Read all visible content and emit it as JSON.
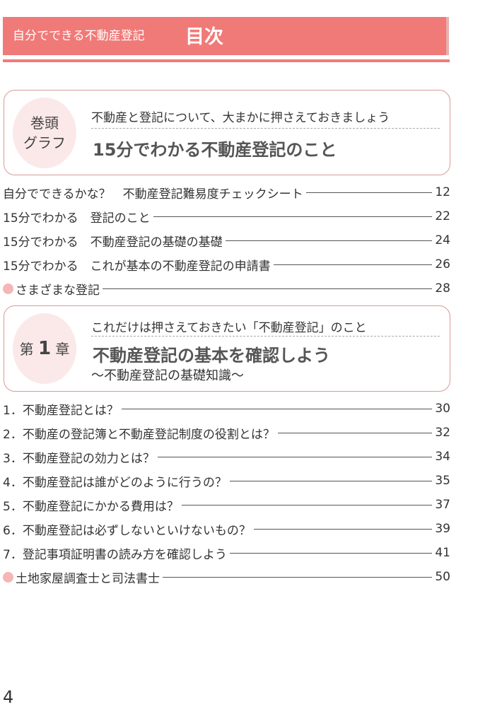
{
  "header": {
    "series": "自分でできる不動産登記",
    "title": "目次"
  },
  "sections": [
    {
      "badge": "巻頭グラフ",
      "badge_lines": [
        "巻頭",
        "グラフ"
      ],
      "subtitle": "不動産と登記について、大まかに押さえておきましょう",
      "title": "15分でわかる不動産登記のこと",
      "entries": [
        {
          "title": "自分でできるかな？　不動産登記難易度チェックシート",
          "page": "12",
          "marker": false
        },
        {
          "title": "15分でわかる　登記のこと",
          "page": "22",
          "marker": false
        },
        {
          "title": "15分でわかる　不動産登記の基礎の基礎",
          "page": "24",
          "marker": false
        },
        {
          "title": "15分でわかる　これが基本の不動産登記の申請書",
          "page": "26",
          "marker": false
        },
        {
          "title": "さまざまな登記",
          "page": "28",
          "marker": true
        }
      ]
    },
    {
      "badge": "第1章",
      "badge_parts": [
        "第",
        "1",
        "章"
      ],
      "subtitle": "これだけは押さえておきたい「不動産登記」のこと",
      "title": "不動産登記の基本を確認しよう",
      "tagline": "～不動産登記の基礎知識～",
      "entries": [
        {
          "title": "1．不動産登記とは？",
          "page": "30",
          "marker": false
        },
        {
          "title": "2．不動産の登記簿と不動産登記制度の役割とは？",
          "page": "32",
          "marker": false
        },
        {
          "title": "3．不動産登記の効力とは？",
          "page": "34",
          "marker": false
        },
        {
          "title": "4．不動産登記は誰がどのように行うの？",
          "page": "35",
          "marker": false
        },
        {
          "title": "5．不動産登記にかかる費用は？",
          "page": "37",
          "marker": false
        },
        {
          "title": "6．不動産登記は必ずしないといけないもの？",
          "page": "39",
          "marker": false
        },
        {
          "title": "7．登記事項証明書の読み方を確認しよう",
          "page": "41",
          "marker": false
        },
        {
          "title": "土地家屋調査士と司法書士",
          "page": "50",
          "marker": true
        }
      ]
    }
  ],
  "page_number": "4",
  "colors": {
    "accent": "#f07a78",
    "marker": "#f5b6b6",
    "oval": "#fbe9e9",
    "box_border": "#d89a98"
  }
}
